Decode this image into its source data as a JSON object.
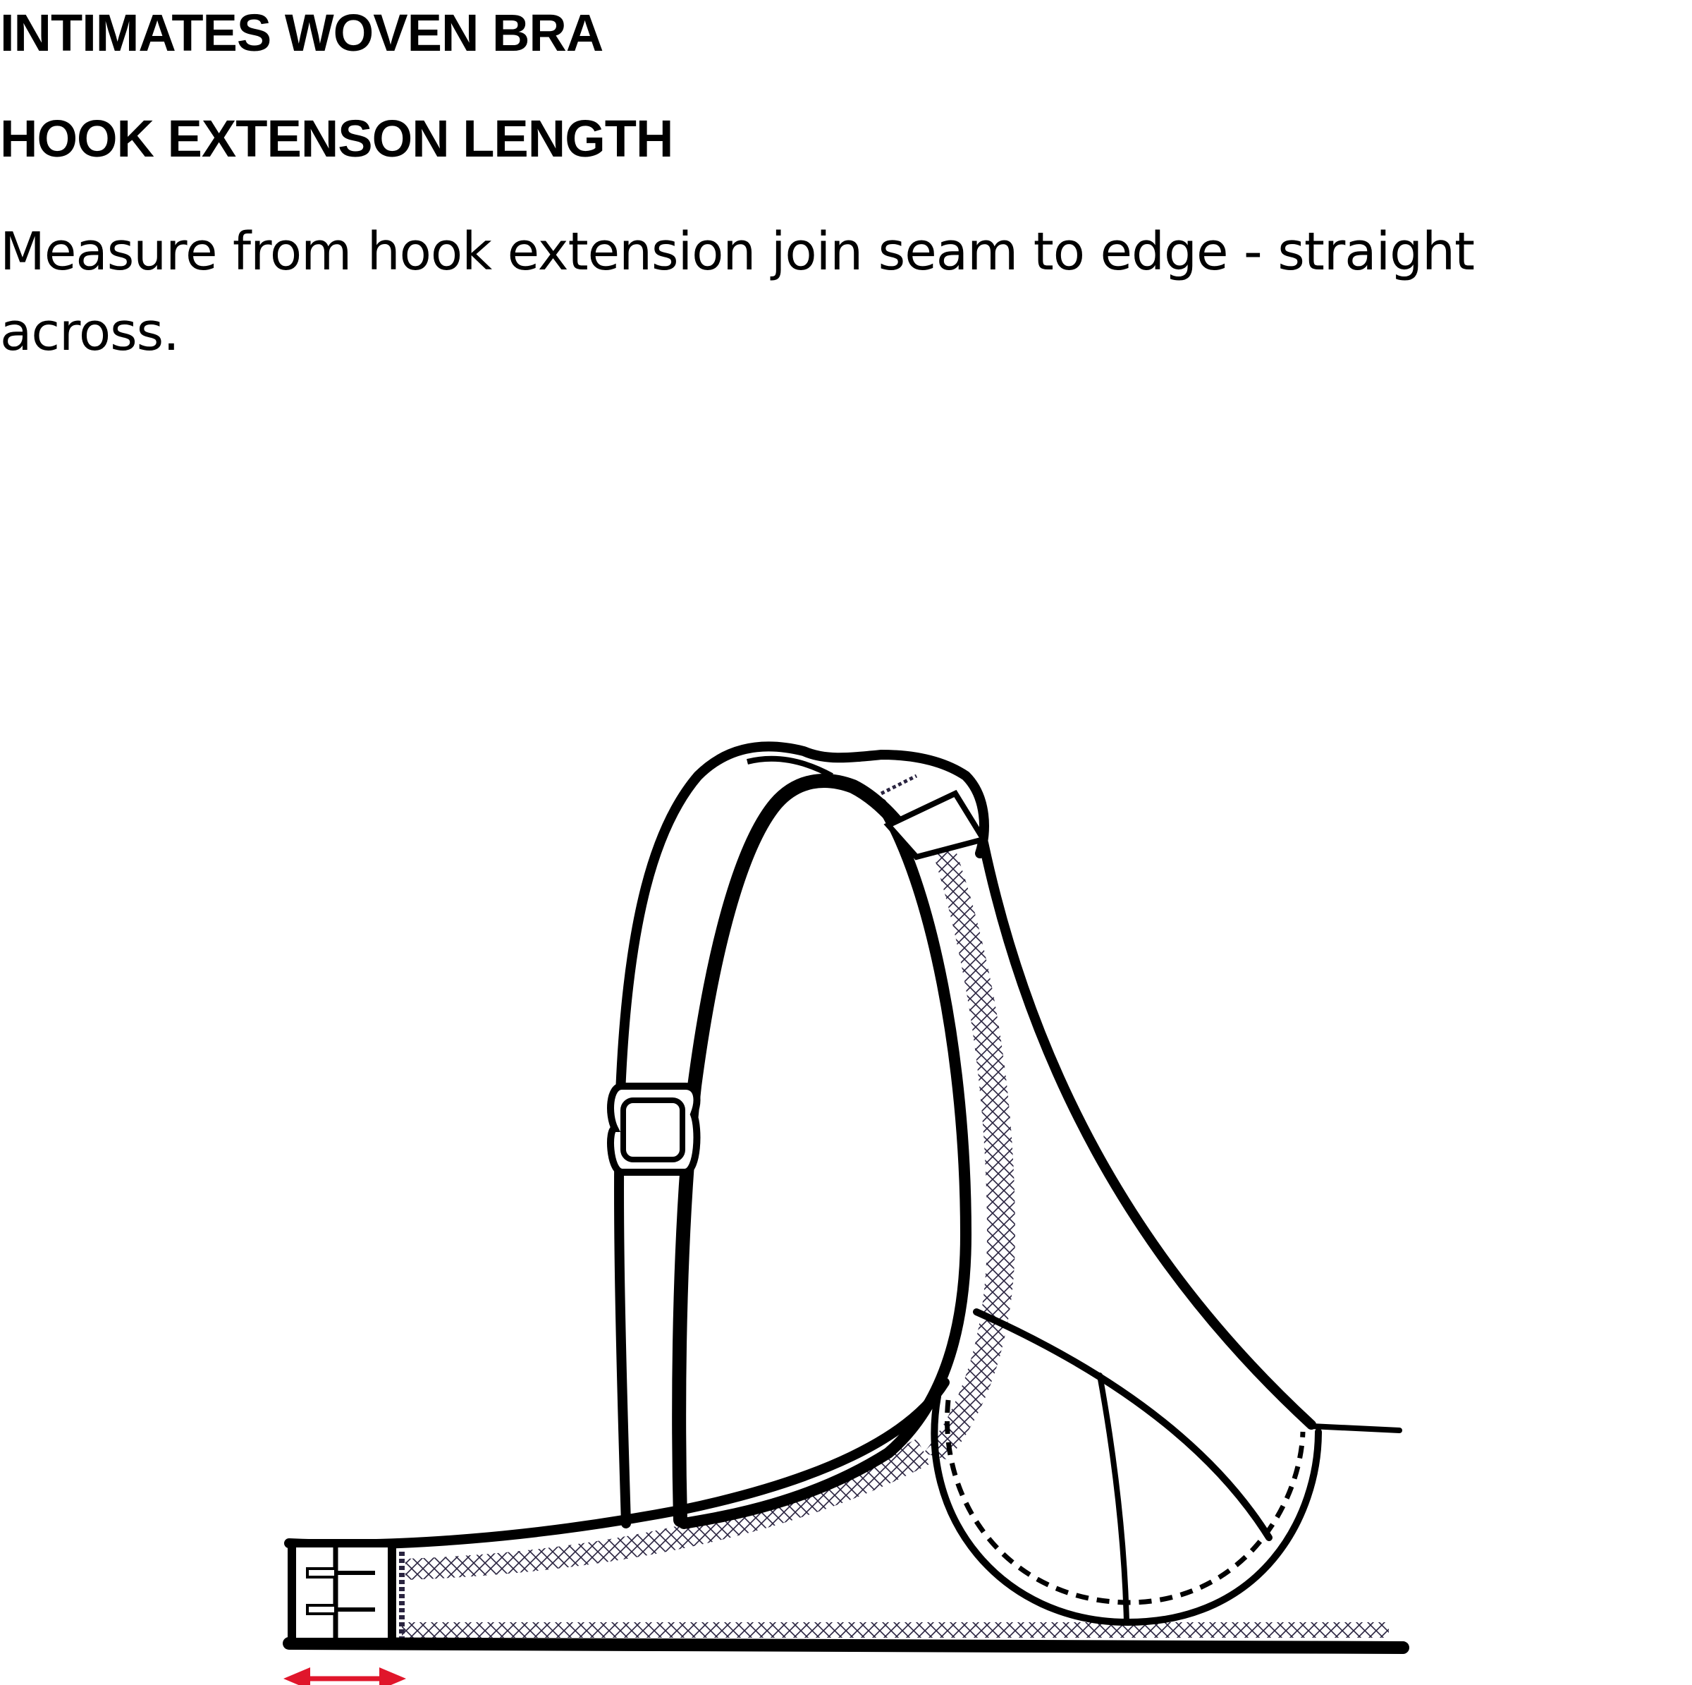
{
  "header": {
    "title": "INTIMATES WOVEN BRA",
    "subtitle": "HOOK EXTENSON LENGTH"
  },
  "instructions": {
    "text": "Measure from hook extension join seam to edge - straight across."
  },
  "diagram": {
    "subject": "bra-side-view",
    "line_color": "#000000",
    "stitch_color": "#2a2440",
    "measurement_arrow_color": "#e0162b"
  }
}
